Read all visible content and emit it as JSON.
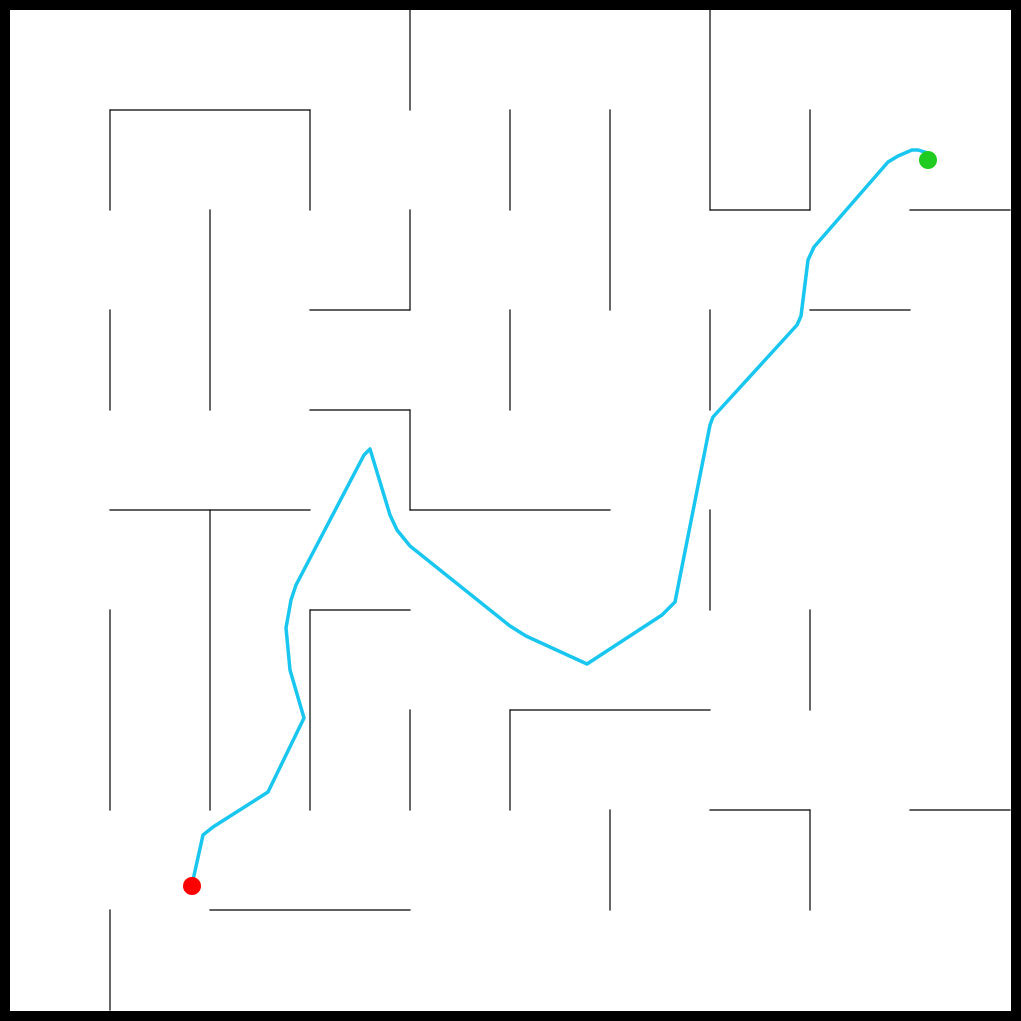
{
  "maze": {
    "grid_size": 10,
    "colors": {
      "background": "#ffffff",
      "border": "#000000",
      "wall": "#000000",
      "path": "#19c6f0",
      "start_marker": "#ff0000",
      "goal_marker": "#1ecb1e"
    },
    "start_marker": {
      "name": "start-marker-icon",
      "color": "red"
    },
    "goal_marker": {
      "name": "goal-marker-icon",
      "color": "green"
    },
    "path_line": {
      "name": "solution-path"
    }
  }
}
